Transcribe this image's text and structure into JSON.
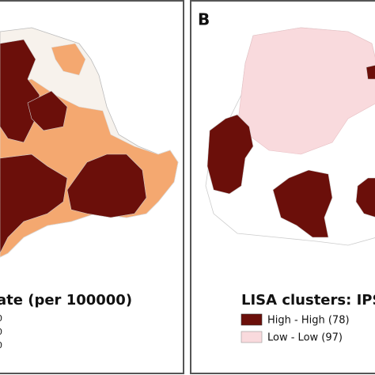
{
  "panels": [
    {
      "map_title": "ate (per 100000)",
      "legend": [
        "0",
        "0",
        "0"
      ]
    },
    {
      "label": "B",
      "map_title": "LISA clusters: IPS",
      "legend": [
        "High - High (78)",
        "Low - Low (97)"
      ]
    }
  ]
}
